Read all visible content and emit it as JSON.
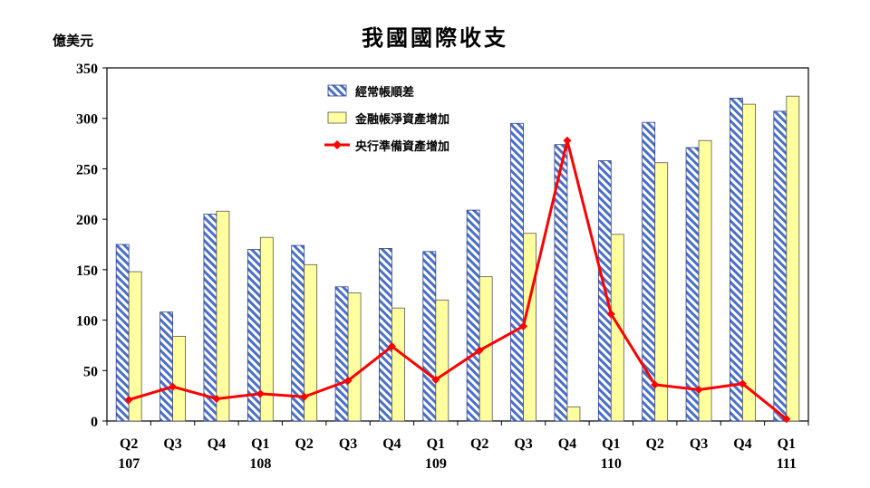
{
  "chart_data": {
    "type": "bar",
    "title": "我國國際收支",
    "unit": "億美元",
    "ylim": [
      0,
      350
    ],
    "yticks": [
      0,
      50,
      100,
      150,
      200,
      250,
      300,
      350
    ],
    "categories": [
      "Q2",
      "Q3",
      "Q4",
      "Q1",
      "Q2",
      "Q3",
      "Q4",
      "Q1",
      "Q2",
      "Q3",
      "Q4",
      "Q1",
      "Q2",
      "Q3",
      "Q4",
      "Q1"
    ],
    "year_labels": [
      {
        "index": 0,
        "label": "107"
      },
      {
        "index": 3,
        "label": "108"
      },
      {
        "index": 7,
        "label": "109"
      },
      {
        "index": 11,
        "label": "110"
      },
      {
        "index": 15,
        "label": "111"
      }
    ],
    "series": [
      {
        "name": "經常帳順差",
        "type": "bar",
        "style": "hatched",
        "color": "#4a6fc7",
        "values": [
          175,
          108,
          205,
          170,
          174,
          133,
          171,
          168,
          209,
          295,
          274,
          258,
          296,
          271,
          320,
          307
        ]
      },
      {
        "name": "金融帳淨資產增加",
        "type": "bar",
        "style": "solid",
        "color": "#ffffa0",
        "values": [
          148,
          84,
          208,
          182,
          155,
          127,
          112,
          120,
          143,
          186,
          14,
          185,
          256,
          278,
          314,
          322
        ]
      },
      {
        "name": "央行準備資產增加",
        "type": "line",
        "color": "#ff0000",
        "values": [
          21,
          34,
          22,
          27,
          24,
          40,
          74,
          41,
          70,
          94,
          278,
          106,
          36,
          31,
          37,
          2
        ]
      }
    ],
    "grid": false,
    "legend_position": "top-center"
  }
}
